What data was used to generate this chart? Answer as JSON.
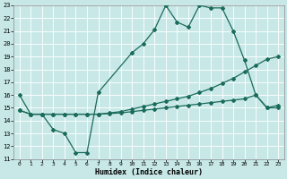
{
  "title": "",
  "xlabel": "Humidex (Indice chaleur)",
  "ylabel": "",
  "xlim": [
    -0.5,
    23.5
  ],
  "ylim": [
    11,
    23
  ],
  "xticks": [
    0,
    1,
    2,
    3,
    4,
    5,
    6,
    7,
    8,
    9,
    10,
    11,
    12,
    13,
    14,
    15,
    16,
    17,
    18,
    19,
    20,
    21,
    22,
    23
  ],
  "yticks": [
    11,
    12,
    13,
    14,
    15,
    16,
    17,
    18,
    19,
    20,
    21,
    22,
    23
  ],
  "bg_color": "#c8e8e8",
  "grid_color": "#b0d8d8",
  "line_color": "#1a6b5a",
  "line1_x": [
    0,
    1,
    2,
    3,
    4,
    5,
    6,
    7,
    10,
    11,
    12,
    13,
    14,
    15,
    16,
    17,
    18,
    19,
    20,
    21,
    22,
    23
  ],
  "line1_y": [
    16.0,
    14.5,
    14.5,
    13.3,
    13.0,
    11.5,
    11.5,
    16.2,
    19.3,
    20.0,
    21.1,
    23.0,
    21.7,
    21.3,
    23.0,
    22.8,
    22.8,
    21.0,
    18.7,
    16.0,
    15.0,
    15.0
  ],
  "line2_x": [
    0,
    1,
    2,
    3,
    4,
    5,
    6,
    7,
    8,
    9,
    10,
    11,
    12,
    13,
    14,
    15,
    16,
    17,
    18,
    19,
    20,
    21,
    22,
    23
  ],
  "line2_y": [
    14.8,
    14.5,
    14.5,
    14.5,
    14.5,
    14.5,
    14.5,
    14.5,
    14.6,
    14.7,
    14.9,
    15.1,
    15.3,
    15.5,
    15.7,
    15.9,
    16.2,
    16.5,
    16.9,
    17.3,
    17.8,
    18.3,
    18.8,
    19.0
  ],
  "line3_x": [
    0,
    1,
    2,
    3,
    4,
    5,
    6,
    7,
    8,
    9,
    10,
    11,
    12,
    13,
    14,
    15,
    16,
    17,
    18,
    19,
    20,
    21,
    22,
    23
  ],
  "line3_y": [
    14.8,
    14.5,
    14.5,
    14.5,
    14.5,
    14.5,
    14.5,
    14.5,
    14.55,
    14.6,
    14.7,
    14.8,
    14.9,
    15.0,
    15.1,
    15.2,
    15.3,
    15.4,
    15.5,
    15.6,
    15.7,
    16.0,
    15.0,
    15.2
  ],
  "marker": "D",
  "markersize": 2.0,
  "linewidth": 0.9
}
